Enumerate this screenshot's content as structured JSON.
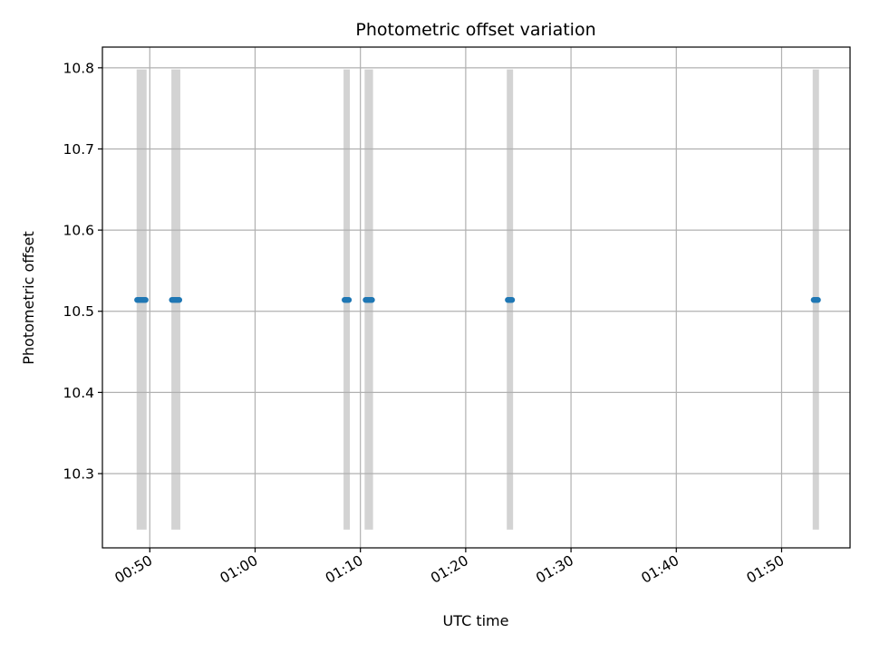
{
  "chart_data": {
    "type": "scatter",
    "title": "Photometric offset variation",
    "xlabel": "UTC time",
    "ylabel": "Photometric offset",
    "x_axis": {
      "kind": "time",
      "range": [
        "00:45:30",
        "01:56:30"
      ],
      "ticks": [
        "00:50",
        "01:00",
        "01:10",
        "01:20",
        "01:30",
        "01:40",
        "01:50"
      ]
    },
    "y_axis": {
      "range": [
        10.2085,
        10.8255
      ],
      "ticks": [
        10.3,
        10.4,
        10.5,
        10.6,
        10.7,
        10.8
      ],
      "tick_labels": [
        "10.3",
        "10.4",
        "10.5",
        "10.6",
        "10.7",
        "10.8"
      ]
    },
    "grid": true,
    "shaded_intervals": {
      "color": "#d3d3d3",
      "y_range": [
        10.231,
        10.798
      ],
      "intervals": [
        [
          "00:48:45",
          "00:49:42"
        ],
        [
          "00:52:03",
          "00:52:54"
        ],
        [
          "01:08:24",
          "01:09:00"
        ],
        [
          "01:10:24",
          "01:11:12"
        ],
        [
          "01:23:54",
          "01:24:30"
        ],
        [
          "01:52:57",
          "01:53:33"
        ]
      ]
    },
    "series": [
      {
        "color": "#1f77b4",
        "points": [
          {
            "x": "00:48:48",
            "y": 10.514
          },
          {
            "x": "00:48:54",
            "y": 10.514
          },
          {
            "x": "00:49:00",
            "y": 10.514
          },
          {
            "x": "00:49:06",
            "y": 10.514
          },
          {
            "x": "00:49:12",
            "y": 10.514
          },
          {
            "x": "00:49:18",
            "y": 10.514
          },
          {
            "x": "00:49:24",
            "y": 10.514
          },
          {
            "x": "00:49:30",
            "y": 10.514
          },
          {
            "x": "00:49:36",
            "y": 10.514
          },
          {
            "x": "00:52:06",
            "y": 10.514
          },
          {
            "x": "00:52:12",
            "y": 10.514
          },
          {
            "x": "00:52:18",
            "y": 10.514
          },
          {
            "x": "00:52:24",
            "y": 10.514
          },
          {
            "x": "00:52:30",
            "y": 10.514
          },
          {
            "x": "00:52:36",
            "y": 10.514
          },
          {
            "x": "00:52:42",
            "y": 10.514
          },
          {
            "x": "00:52:48",
            "y": 10.514
          },
          {
            "x": "01:08:30",
            "y": 10.514
          },
          {
            "x": "01:08:36",
            "y": 10.514
          },
          {
            "x": "01:08:42",
            "y": 10.514
          },
          {
            "x": "01:08:48",
            "y": 10.514
          },
          {
            "x": "01:08:54",
            "y": 10.514
          },
          {
            "x": "01:10:30",
            "y": 10.514
          },
          {
            "x": "01:10:36",
            "y": 10.514
          },
          {
            "x": "01:10:42",
            "y": 10.514
          },
          {
            "x": "01:10:48",
            "y": 10.514
          },
          {
            "x": "01:10:54",
            "y": 10.514
          },
          {
            "x": "01:11:00",
            "y": 10.514
          },
          {
            "x": "01:11:06",
            "y": 10.514
          },
          {
            "x": "01:24:00",
            "y": 10.514
          },
          {
            "x": "01:24:06",
            "y": 10.514
          },
          {
            "x": "01:24:12",
            "y": 10.514
          },
          {
            "x": "01:24:18",
            "y": 10.514
          },
          {
            "x": "01:24:24",
            "y": 10.514
          },
          {
            "x": "01:53:03",
            "y": 10.514
          },
          {
            "x": "01:53:09",
            "y": 10.514
          },
          {
            "x": "01:53:15",
            "y": 10.514
          },
          {
            "x": "01:53:21",
            "y": 10.514
          },
          {
            "x": "01:53:27",
            "y": 10.514
          }
        ]
      }
    ]
  }
}
